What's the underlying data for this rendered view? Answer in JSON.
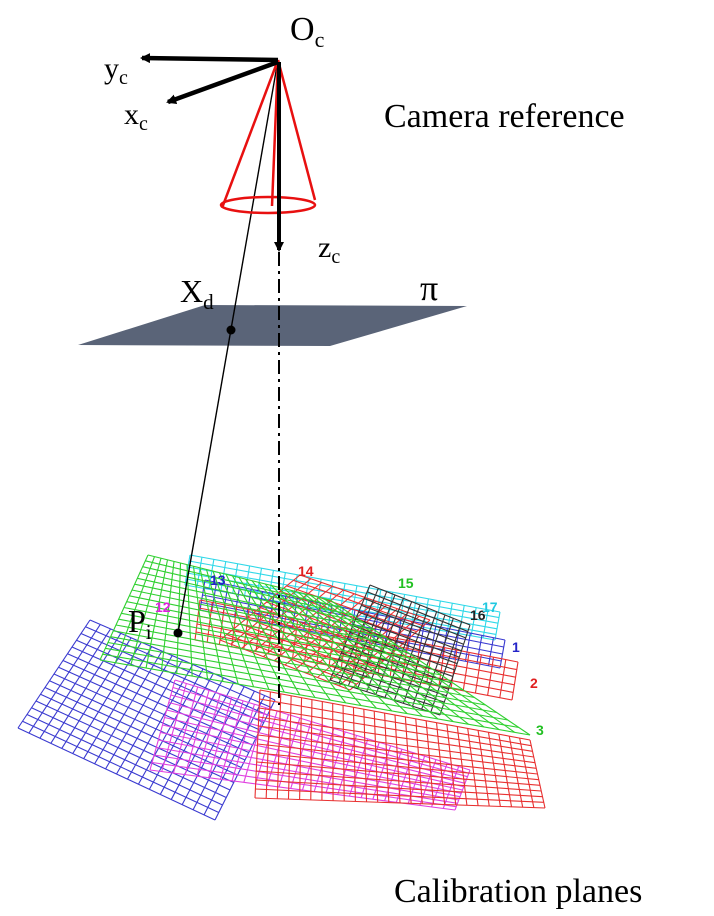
{
  "labels": {
    "origin": "O",
    "origin_sub": "c",
    "yc": "y",
    "yc_sub": "c",
    "xc": "x",
    "xc_sub": "c",
    "zc": "z",
    "zc_sub": "c",
    "xd": "X",
    "xd_sub": "d",
    "pi": "π",
    "pi_point": "P",
    "pi_point_sub": "i",
    "camera_reference": "Camera reference",
    "calibration_planes": "Calibration planes"
  },
  "plane_numbers": [
    {
      "text": "13",
      "color": "#2424c8"
    },
    {
      "text": "14",
      "color": "#e02020"
    },
    {
      "text": "15",
      "color": "#22c022"
    },
    {
      "text": "16",
      "color": "#222222"
    },
    {
      "text": "17",
      "color": "#20c8e0"
    },
    {
      "text": "12",
      "color": "#e020e0"
    },
    {
      "text": "1",
      "color": "#2424c8"
    },
    {
      "text": "2",
      "color": "#e02020"
    },
    {
      "text": "3",
      "color": "#22c022"
    }
  ],
  "colors": {
    "cone": "#e81010",
    "image_plane": "#5a6478",
    "grid_blue": "#3a3ad0",
    "grid_red": "#e83030",
    "grid_green": "#30d030",
    "grid_magenta": "#e040e0",
    "grid_cyan": "#30d8e8",
    "grid_black": "#333333"
  }
}
